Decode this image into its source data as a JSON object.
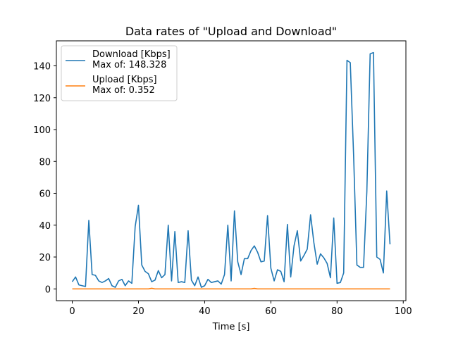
{
  "chart_data": {
    "type": "line",
    "title": "Data rates of \"Upload and Download\"",
    "xlabel": "Time [s]",
    "ylabel": "",
    "xlim": [
      -4.8,
      100.8
    ],
    "ylim": [
      -7.4,
      155.7
    ],
    "xticks": [
      0,
      20,
      40,
      60,
      80,
      100
    ],
    "yticks": [
      0,
      20,
      40,
      60,
      80,
      100,
      120,
      140
    ],
    "grid": false,
    "legend_position": "top-left",
    "series": [
      {
        "name": "Download [Kbps]",
        "legend_lines": [
          "Download [Kbps]",
          "Max of: 148.328"
        ],
        "color": "#1f77b4",
        "x": [
          0,
          1,
          2,
          3,
          4,
          5,
          6,
          7,
          8,
          9,
          10,
          11,
          12,
          13,
          14,
          15,
          16,
          17,
          18,
          19,
          20,
          21,
          22,
          23,
          24,
          25,
          26,
          27,
          28,
          29,
          30,
          31,
          32,
          33,
          34,
          35,
          36,
          37,
          38,
          39,
          40,
          41,
          42,
          43,
          44,
          45,
          46,
          47,
          48,
          49,
          50,
          51,
          52,
          53,
          54,
          55,
          56,
          57,
          58,
          59,
          60,
          61,
          62,
          63,
          64,
          65,
          66,
          67,
          68,
          69,
          70,
          71,
          72,
          73,
          74,
          75,
          76,
          77,
          78,
          79,
          80,
          81,
          82,
          83,
          84,
          85,
          86,
          87,
          88,
          89,
          90,
          91,
          92,
          93,
          94,
          95,
          96
        ],
        "y": [
          4.5,
          7.5,
          2.5,
          2,
          1.5,
          43,
          9,
          8.5,
          5,
          4,
          5,
          6.5,
          2,
          1,
          5,
          6,
          2,
          5,
          3.5,
          39,
          52.5,
          15,
          11,
          9.5,
          4.5,
          5.5,
          11.5,
          7,
          9,
          40,
          5,
          36,
          4,
          4.5,
          4,
          36.5,
          5.5,
          2,
          7.5,
          1,
          2,
          6,
          4,
          4.5,
          5,
          3,
          9,
          40,
          5,
          49,
          17,
          9,
          19,
          19,
          24,
          27,
          23,
          17,
          17.5,
          46,
          13,
          5,
          12,
          11,
          4.5,
          40.5,
          7.5,
          27,
          36.5,
          17.5,
          21,
          25,
          46.5,
          29,
          15.5,
          22,
          19.5,
          16,
          7,
          44.5,
          3.5,
          4,
          10,
          143.5,
          142,
          84,
          15,
          13.5,
          13.5,
          61,
          147.5,
          148.328,
          20,
          18.5,
          10,
          61.5,
          28
        ]
      },
      {
        "name": "Upload [Kbps]",
        "legend_lines": [
          "Upload [Kbps]",
          "Max of: 0.352"
        ],
        "color": "#ff7f0e",
        "x": [
          0,
          12,
          23,
          24,
          25,
          26,
          54,
          55,
          56,
          57,
          96
        ],
        "y": [
          0,
          0,
          0,
          0.352,
          0,
          0,
          0,
          0.3,
          0,
          0,
          0
        ]
      }
    ]
  }
}
